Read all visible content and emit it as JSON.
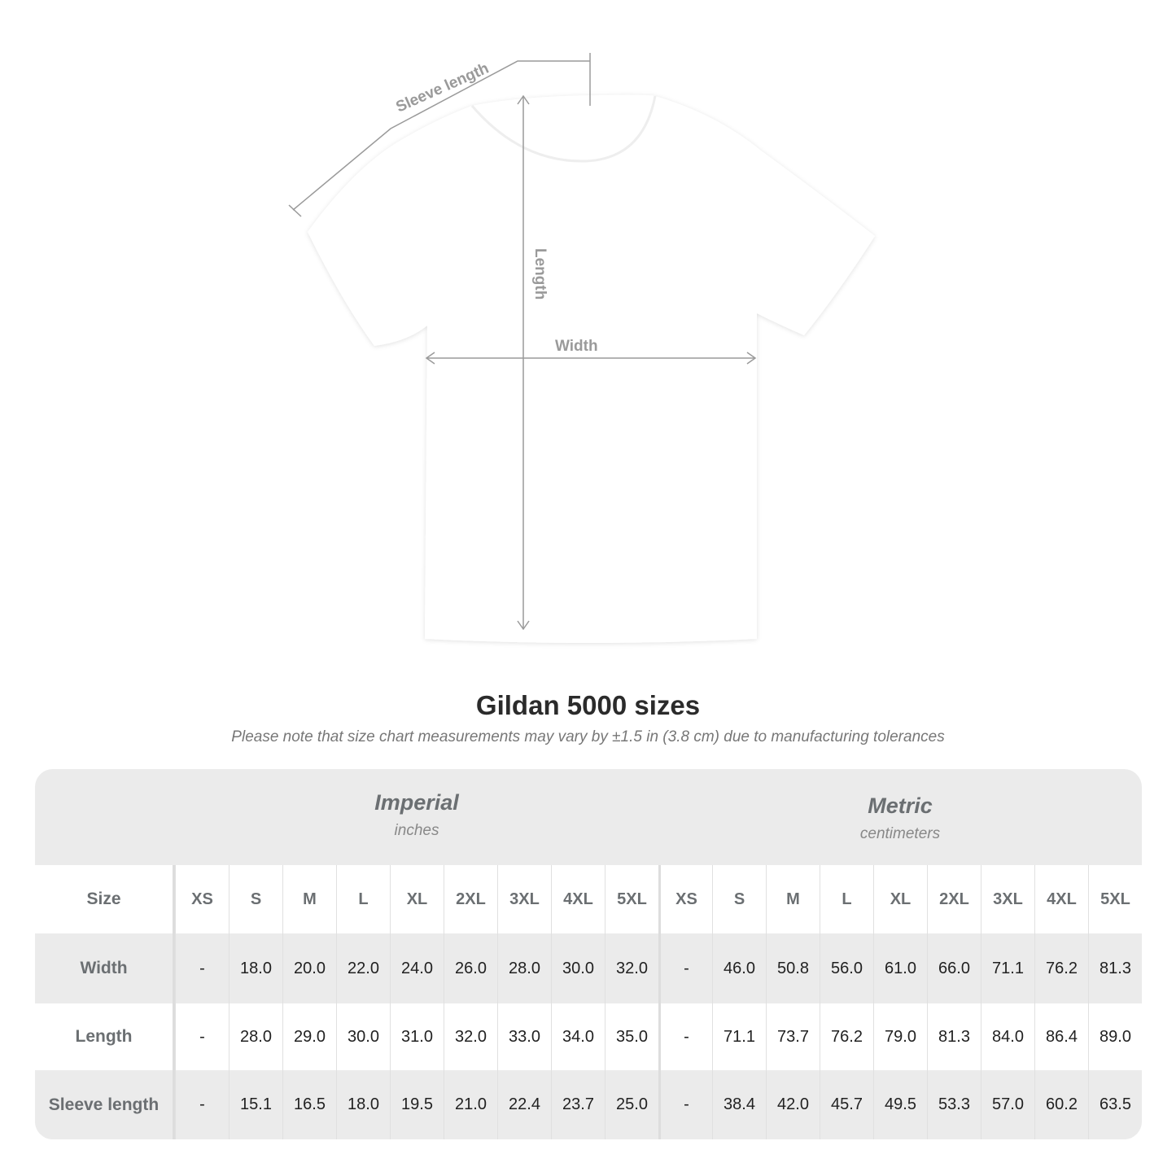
{
  "diagram": {
    "labels": {
      "sleeve": "Sleeve length",
      "length": "Length",
      "width": "Width"
    },
    "line_color": "#9a9a9a"
  },
  "title": "Gildan 5000 sizes",
  "note": "Please note that size chart measurements may vary by ±1.5 in (3.8 cm) due to manufacturing tolerances",
  "table": {
    "imperial": {
      "name": "Imperial",
      "unit": "inches"
    },
    "metric": {
      "name": "Metric",
      "unit": "centimeters"
    },
    "size_label": "Size",
    "sizes": [
      "XS",
      "S",
      "M",
      "L",
      "XL",
      "2XL",
      "3XL",
      "4XL",
      "5XL"
    ],
    "rows": [
      {
        "label": "Width",
        "imperial": [
          "-",
          "18.0",
          "20.0",
          "22.0",
          "24.0",
          "26.0",
          "28.0",
          "30.0",
          "32.0"
        ],
        "metric": [
          "-",
          "46.0",
          "50.8",
          "56.0",
          "61.0",
          "66.0",
          "71.1",
          "76.2",
          "81.3"
        ]
      },
      {
        "label": "Length",
        "imperial": [
          "-",
          "28.0",
          "29.0",
          "30.0",
          "31.0",
          "32.0",
          "33.0",
          "34.0",
          "35.0"
        ],
        "metric": [
          "-",
          "71.1",
          "73.7",
          "76.2",
          "79.0",
          "81.3",
          "84.0",
          "86.4",
          "89.0"
        ]
      },
      {
        "label": "Sleeve length",
        "imperial": [
          "-",
          "15.1",
          "16.5",
          "18.0",
          "19.5",
          "21.0",
          "22.4",
          "23.7",
          "25.0"
        ],
        "metric": [
          "-",
          "38.4",
          "42.0",
          "45.7",
          "49.5",
          "53.3",
          "57.0",
          "60.2",
          "63.5"
        ]
      }
    ]
  }
}
